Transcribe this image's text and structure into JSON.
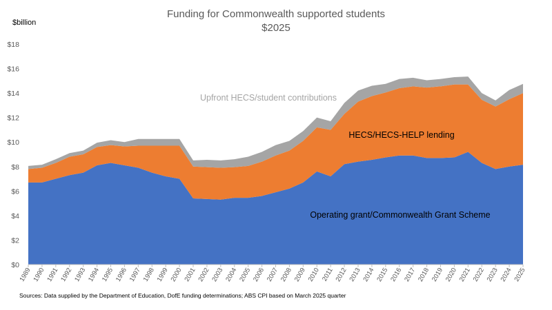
{
  "chart_data": {
    "type": "area",
    "stacked": true,
    "title": "Funding for Commonwealth supported students",
    "subtitle": "$2025",
    "ylabel": "$billion",
    "xlabel": "",
    "ylim": [
      0,
      18
    ],
    "y_ticks": [
      0,
      2,
      4,
      6,
      8,
      10,
      12,
      14,
      16,
      18
    ],
    "y_tick_labels": [
      "$0",
      "$2",
      "$4",
      "$6",
      "$8",
      "$10",
      "$12",
      "$14",
      "$16",
      "$18"
    ],
    "grid": false,
    "legend": "none",
    "x": [
      "1989",
      "1990",
      "1991",
      "1992",
      "1993",
      "1994",
      "1995",
      "1996",
      "1997",
      "1998",
      "1999",
      "2000",
      "2001",
      "2002",
      "2003",
      "2004",
      "2005",
      "2006",
      "2007",
      "2008",
      "2009",
      "2010",
      "2011",
      "2012",
      "2013",
      "2014",
      "2015",
      "2016",
      "2017",
      "2018",
      "2019",
      "2020",
      "2021",
      "2022",
      "2023",
      "2024",
      "2025"
    ],
    "series": [
      {
        "name": "Operating grant/Commonwealth Grant Scheme",
        "color": "#4472C4",
        "values": [
          6.7,
          6.7,
          7.0,
          7.3,
          7.5,
          8.1,
          8.3,
          8.1,
          7.9,
          7.5,
          7.2,
          7.0,
          5.4,
          5.35,
          5.3,
          5.45,
          5.45,
          5.6,
          5.9,
          6.2,
          6.7,
          7.6,
          7.2,
          8.2,
          8.4,
          8.55,
          8.75,
          8.9,
          8.9,
          8.7,
          8.7,
          8.75,
          9.2,
          8.3,
          7.8,
          8.0,
          8.15
        ]
      },
      {
        "name": "HECS/HECS-HELP lending",
        "color": "#ED7D31",
        "values": [
          1.1,
          1.2,
          1.3,
          1.5,
          1.5,
          1.5,
          1.45,
          1.55,
          1.8,
          2.2,
          2.5,
          2.7,
          2.6,
          2.6,
          2.6,
          2.5,
          2.6,
          2.8,
          3.0,
          3.1,
          3.4,
          3.6,
          3.8,
          4.1,
          4.9,
          5.2,
          5.3,
          5.5,
          5.65,
          5.75,
          5.85,
          5.95,
          5.5,
          5.15,
          5.1,
          5.5,
          5.85
        ]
      },
      {
        "name": "Upfront HECS/student contributions",
        "color": "#A5A5A5",
        "values": [
          0.25,
          0.25,
          0.3,
          0.3,
          0.3,
          0.35,
          0.4,
          0.35,
          0.55,
          0.55,
          0.55,
          0.55,
          0.5,
          0.6,
          0.6,
          0.65,
          0.75,
          0.8,
          0.85,
          0.8,
          0.8,
          0.8,
          0.7,
          0.9,
          0.9,
          0.85,
          0.7,
          0.75,
          0.7,
          0.6,
          0.6,
          0.6,
          0.65,
          0.55,
          0.5,
          0.75,
          0.75
        ]
      }
    ],
    "annotations": [
      "Upfront HECS/student contributions",
      "HECS/HECS-HELP lending",
      "Operating grant/Commonwealth Grant Scheme"
    ],
    "annotation_colors": [
      "#A5A5A5",
      "#000000",
      "#000000"
    ],
    "source": "Sources: Data supplied by the Department of Education, DofE funding determinations; ABS CPI based on March 2025 quarter"
  }
}
